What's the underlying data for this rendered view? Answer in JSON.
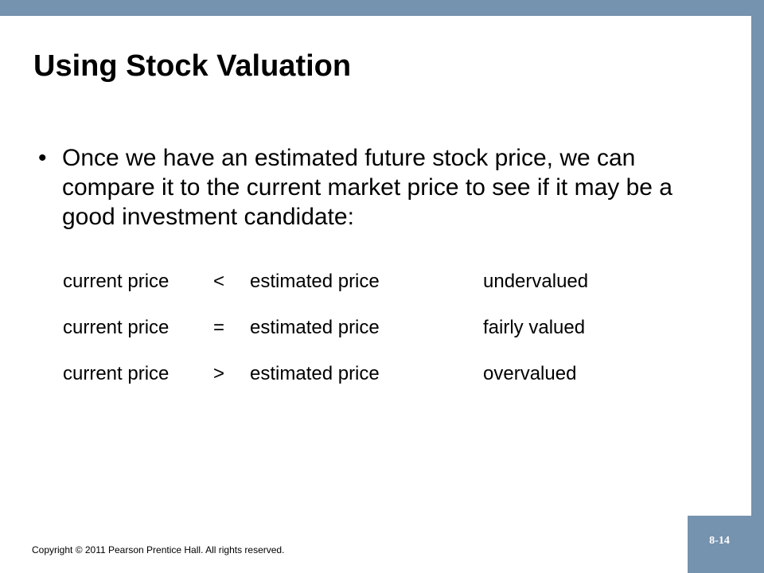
{
  "slide": {
    "title": "Using Stock Valuation",
    "bullet": {
      "marker": "•",
      "text": "Once we have an estimated future stock price, we can compare it to the current market price to see if it may be a good investment candidate:"
    },
    "comparisons": [
      {
        "left": "current price",
        "operator": "<",
        "right": "estimated price",
        "result": "undervalued"
      },
      {
        "left": "current price",
        "operator": "=",
        "right": "estimated price",
        "result": "fairly valued"
      },
      {
        "left": "current price",
        "operator": ">",
        "right": "estimated price",
        "result": "overvalued"
      }
    ],
    "footer": {
      "copyright": "Copyright © 2011 Pearson Prentice Hall. All rights reserved.",
      "page_number": "8-14"
    }
  },
  "colors": {
    "frame": "#7592ae",
    "background": "#ffffff",
    "text": "#000000"
  }
}
